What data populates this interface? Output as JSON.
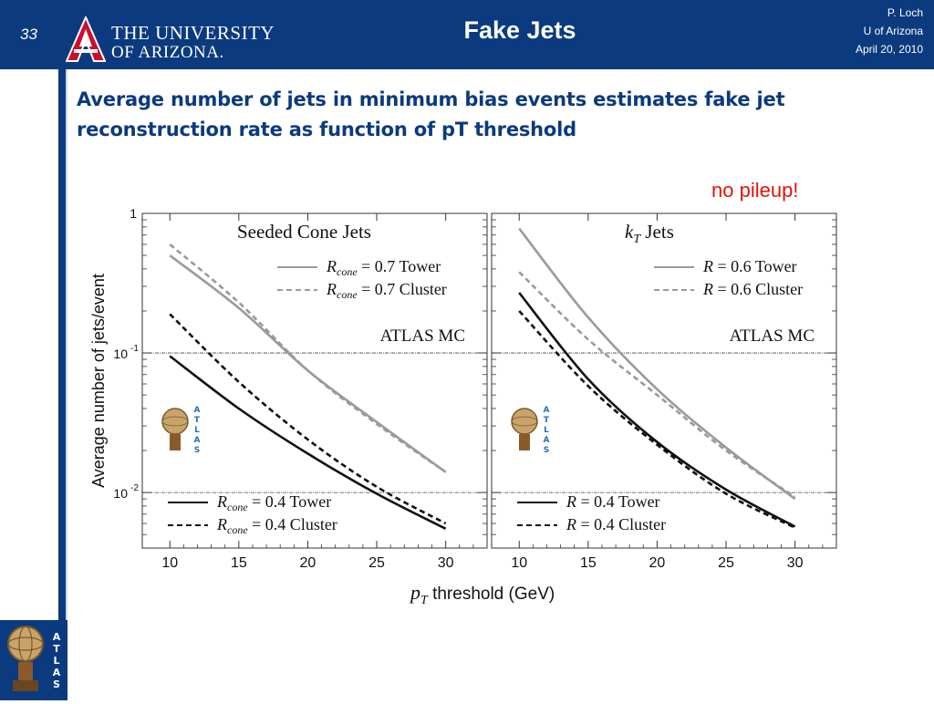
{
  "header": {
    "slide_number": "33",
    "university_line1": "THE UNIVERSITY",
    "university_line2": "OF ARIZONA.",
    "title": "Fake Jets",
    "author": "P. Loch",
    "affiliation": "U of Arizona",
    "date": "April 20, 2010"
  },
  "colors": {
    "header_bg": "#0b3a7e",
    "heading": "#0b3a7e",
    "accent_red": "#e3120b",
    "ua_red": "#c8102e"
  },
  "heading_text": "Average number of jets in minimum bias events estimates fake jet reconstruction rate as function of pT threshold",
  "callout": "no pileup!",
  "logos": {
    "header_logo": "University of Arizona A logo",
    "atlas_text": "ATLAS"
  },
  "chart_data": {
    "type": "line",
    "ylabel": "Average number of jets/event",
    "xlabel": "threshold (GeV)",
    "xlabel_symbol": "p",
    "xlabel_subscript": "T",
    "yscale": "log",
    "ylim": [
      0.004,
      1
    ],
    "xlim": [
      8,
      33
    ],
    "x_ticks": [
      "10",
      "15",
      "20",
      "25",
      "30"
    ],
    "y_tick_labels": [
      {
        "value": 1,
        "label": "1"
      },
      {
        "value": 0.1,
        "base": "10",
        "exp": "-1"
      },
      {
        "value": 0.01,
        "base": "10",
        "exp": "-2"
      }
    ],
    "panels": [
      {
        "title": "Seeded Cone Jets",
        "watermark": "ATLAS MC",
        "legend_top": [
          {
            "label": "R = 0.7 Tower",
            "symbol": "R",
            "sub": "cone",
            "text": " = 0.7 Tower",
            "style": "solid-gray"
          },
          {
            "label": "R = 0.7 Cluster",
            "symbol": "R",
            "sub": "cone",
            "text": " = 0.7 Cluster",
            "style": "dashed-gray"
          }
        ],
        "legend_bottom": [
          {
            "label": "R = 0.4 Tower",
            "symbol": "R",
            "sub": "cone",
            "text": " = 0.4 Tower",
            "style": "solid-black"
          },
          {
            "label": "R = 0.4 Cluster",
            "symbol": "R",
            "sub": "cone",
            "text": " = 0.4 Cluster",
            "style": "dashed-black"
          }
        ],
        "series": [
          {
            "style": "solid-gray",
            "x": [
              10,
              15,
              20,
              25,
              30
            ],
            "y": [
              0.5,
              0.21,
              0.075,
              0.032,
              0.014
            ]
          },
          {
            "style": "dashed-gray",
            "x": [
              10,
              15,
              20,
              25,
              30
            ],
            "y": [
              0.6,
              0.23,
              0.075,
              0.031,
              0.014
            ]
          },
          {
            "style": "solid-black",
            "x": [
              10,
              15,
              20,
              25,
              30
            ],
            "y": [
              0.095,
              0.04,
              0.019,
              0.0098,
              0.0055
            ]
          },
          {
            "style": "dashed-black",
            "x": [
              10,
              15,
              20,
              25,
              30
            ],
            "y": [
              0.19,
              0.062,
              0.024,
              0.011,
              0.006
            ]
          }
        ]
      },
      {
        "title": "Jets",
        "title_symbol": "k",
        "title_subscript": "T",
        "watermark": "ATLAS MC",
        "legend_top": [
          {
            "label": "R = 0.6 Tower",
            "symbol": "R",
            "sub": "",
            "text": " = 0.6 Tower",
            "style": "solid-gray"
          },
          {
            "label": "R = 0.6 Cluster",
            "symbol": "R",
            "sub": "",
            "text": " = 0.6 Cluster",
            "style": "dashed-gray"
          }
        ],
        "legend_bottom": [
          {
            "label": "R = 0.4 Tower",
            "symbol": "R",
            "sub": "",
            "text": " = 0.4 Tower",
            "style": "solid-black"
          },
          {
            "label": "R = 0.4 Cluster",
            "symbol": "R",
            "sub": "",
            "text": " = 0.4 Cluster",
            "style": "dashed-black"
          }
        ],
        "series": [
          {
            "style": "solid-gray",
            "x": [
              10,
              15,
              20,
              25,
              30
            ],
            "y": [
              0.78,
              0.18,
              0.055,
              0.021,
              0.009
            ]
          },
          {
            "style": "dashed-gray",
            "x": [
              10,
              15,
              20,
              25,
              30
            ],
            "y": [
              0.38,
              0.125,
              0.05,
              0.02,
              0.0093
            ]
          },
          {
            "style": "solid-black",
            "x": [
              10,
              15,
              20,
              25,
              30
            ],
            "y": [
              0.27,
              0.065,
              0.023,
              0.0105,
              0.0057
            ]
          },
          {
            "style": "dashed-black",
            "x": [
              10,
              15,
              20,
              25,
              30
            ],
            "y": [
              0.2,
              0.058,
              0.022,
              0.0098,
              0.0056
            ]
          }
        ]
      }
    ]
  }
}
